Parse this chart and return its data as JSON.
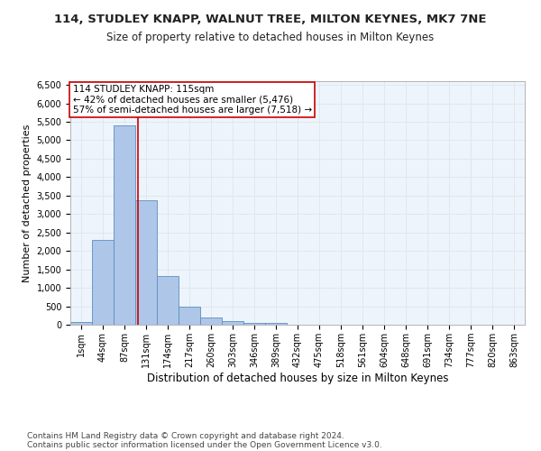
{
  "title": "114, STUDLEY KNAPP, WALNUT TREE, MILTON KEYNES, MK7 7NE",
  "subtitle": "Size of property relative to detached houses in Milton Keynes",
  "xlabel": "Distribution of detached houses by size in Milton Keynes",
  "ylabel": "Number of detached properties",
  "bin_labels": [
    "1sqm",
    "44sqm",
    "87sqm",
    "131sqm",
    "174sqm",
    "217sqm",
    "260sqm",
    "303sqm",
    "346sqm",
    "389sqm",
    "432sqm",
    "475sqm",
    "518sqm",
    "561sqm",
    "604sqm",
    "648sqm",
    "691sqm",
    "734sqm",
    "777sqm",
    "820sqm",
    "863sqm"
  ],
  "bar_values": [
    80,
    2300,
    5400,
    3380,
    1320,
    480,
    190,
    90,
    60,
    50,
    0,
    0,
    0,
    0,
    0,
    0,
    0,
    0,
    0,
    0,
    0
  ],
  "bar_color": "#aec6e8",
  "bar_edge_color": "#5a8fc0",
  "grid_color": "#dde8f0",
  "background_color": "#eef4fb",
  "vline_x": 2.636,
  "vline_color": "#cc0000",
  "annotation_text": "114 STUDLEY KNAPP: 115sqm\n← 42% of detached houses are smaller (5,476)\n57% of semi-detached houses are larger (7,518) →",
  "annotation_box_color": "#ffffff",
  "annotation_edge_color": "#cc0000",
  "ylim": [
    0,
    6600
  ],
  "yticks": [
    0,
    500,
    1000,
    1500,
    2000,
    2500,
    3000,
    3500,
    4000,
    4500,
    5000,
    5500,
    6000,
    6500
  ],
  "footer_line1": "Contains HM Land Registry data © Crown copyright and database right 2024.",
  "footer_line2": "Contains public sector information licensed under the Open Government Licence v3.0.",
  "title_fontsize": 9.5,
  "subtitle_fontsize": 8.5,
  "xlabel_fontsize": 8.5,
  "ylabel_fontsize": 8,
  "tick_fontsize": 7,
  "annotation_fontsize": 7.5,
  "footer_fontsize": 6.5
}
